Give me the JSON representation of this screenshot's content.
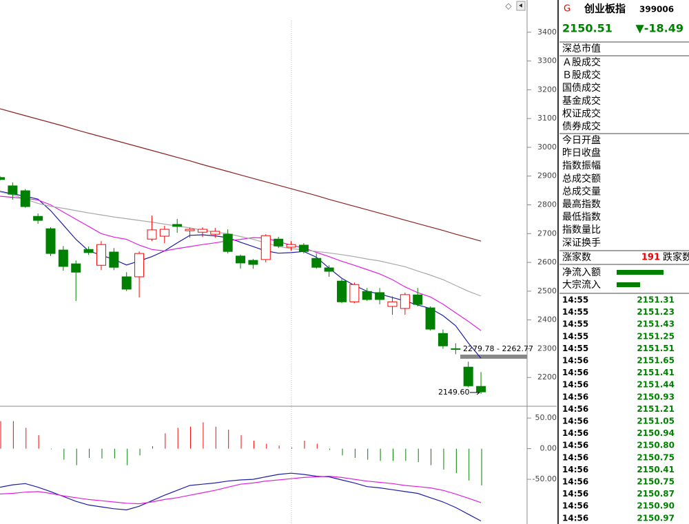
{
  "header": {
    "badge": "G",
    "name": "创业板指",
    "code": "399006",
    "price": "2150.51",
    "change": "▼-18.49"
  },
  "fields": [
    [
      "深总市值"
    ],
    [
      "Ａ股成交",
      "Ｂ股成交",
      "国债成交",
      "基金成交",
      "权证成交",
      "债券成交"
    ],
    [
      "今日开盘",
      "昨日收盘",
      "指数振幅",
      "总成交额",
      "总成交量",
      "最高指数",
      "最低指数",
      "指数量比",
      "深证换手"
    ]
  ],
  "breadth": {
    "up_label": "涨家数",
    "up_value": "191",
    "down_label": "跌家数"
  },
  "flows": [
    "净流入额",
    "大宗流入"
  ],
  "trades": [
    [
      "14:55",
      "2151.31"
    ],
    [
      "14:55",
      "2151.23"
    ],
    [
      "14:55",
      "2151.43"
    ],
    [
      "14:55",
      "2151.25"
    ],
    [
      "14:55",
      "2151.51"
    ],
    [
      "14:56",
      "2151.65"
    ],
    [
      "14:56",
      "2151.41"
    ],
    [
      "14:56",
      "2151.44"
    ],
    [
      "14:56",
      "2150.93"
    ],
    [
      "14:56",
      "2151.21"
    ],
    [
      "14:56",
      "2151.05"
    ],
    [
      "14:56",
      "2150.94"
    ],
    [
      "14:56",
      "2150.80"
    ],
    [
      "14:56",
      "2150.75"
    ],
    [
      "14:56",
      "2150.41"
    ],
    [
      "14:56",
      "2150.75"
    ],
    [
      "14:56",
      "2150.87"
    ],
    [
      "14:56",
      "2150.90"
    ],
    [
      "14:56",
      "2150.97"
    ]
  ],
  "chart_data": [
    {
      "type": "candlestick",
      "up_color": "#ff0000",
      "down_color": "#008000",
      "open": [
        2895,
        2866,
        2849,
        2760,
        2717,
        2643,
        2595,
        2645,
        2590,
        2636,
        2550,
        2550,
        2681,
        2691,
        2732,
        2710,
        2705,
        2698,
        2698,
        2622,
        2607,
        2610,
        2681,
        2653,
        2660,
        2614,
        2581,
        2535,
        2463,
        2499,
        2495,
        2447,
        2440,
        2487,
        2442,
        2353,
        2300,
        2236,
        2169
      ],
      "high": [
        2900,
        2878,
        2855,
        2770,
        2722,
        2657,
        2607,
        2655,
        2674,
        2650,
        2566,
        2638,
        2763,
        2727,
        2751,
        2720,
        2722,
        2720,
        2715,
        2627,
        2612,
        2698,
        2689,
        2674,
        2667,
        2631,
        2590,
        2542,
        2530,
        2511,
        2511,
        2482,
        2495,
        2511,
        2447,
        2367,
        2319,
        2255,
        2219
      ],
      "low": [
        2885,
        2818,
        2790,
        2734,
        2622,
        2571,
        2466,
        2626,
        2573,
        2573,
        2500,
        2478,
        2674,
        2667,
        2703,
        2686,
        2688,
        2686,
        2631,
        2578,
        2578,
        2600,
        2650,
        2640,
        2631,
        2578,
        2550,
        2458,
        2458,
        2466,
        2454,
        2418,
        2418,
        2447,
        2363,
        2300,
        2281,
        2166,
        2143
      ],
      "close": [
        2888,
        2837,
        2794,
        2746,
        2631,
        2586,
        2566,
        2634,
        2662,
        2583,
        2507,
        2631,
        2713,
        2715,
        2725,
        2715,
        2715,
        2708,
        2638,
        2598,
        2593,
        2693,
        2657,
        2662,
        2638,
        2583,
        2569,
        2463,
        2523,
        2471,
        2471,
        2463,
        2488,
        2454,
        2368,
        2310,
        2298,
        2171,
        2150
      ],
      "series": [
        {
          "color": "#1c1ca8",
          "values": [
            2847,
            2838,
            2830,
            2820,
            2780,
            2730,
            2680,
            2640,
            2625,
            2610,
            2591,
            2605,
            2620,
            2640,
            2668,
            2694,
            2696,
            2692,
            2686,
            2670,
            2655,
            2640,
            2632,
            2634,
            2638,
            2618,
            2580,
            2545,
            2520,
            2500,
            2490,
            2478,
            2466,
            2452,
            2440,
            2415,
            2380,
            2320,
            2267
          ]
        },
        {
          "color": "#e020e0",
          "values": [
            2830,
            2826,
            2822,
            2817,
            2800,
            2775,
            2750,
            2725,
            2700,
            2688,
            2680,
            2660,
            2645,
            2640,
            2648,
            2655,
            2662,
            2668,
            2675,
            2680,
            2686,
            2685,
            2672,
            2660,
            2650,
            2635,
            2620,
            2604,
            2590,
            2575,
            2560,
            2540,
            2515,
            2495,
            2480,
            2455,
            2425,
            2395,
            2363
          ]
        },
        {
          "color": "#a8a8a8",
          "values": [
            2845,
            2835,
            2820,
            2805,
            2795,
            2788,
            2780,
            2772,
            2765,
            2758,
            2752,
            2746,
            2740,
            2733,
            2726,
            2720,
            2712,
            2705,
            2700,
            2690,
            2680,
            2668,
            2655,
            2648,
            2643,
            2638,
            2633,
            2627,
            2620,
            2612,
            2605,
            2595,
            2585,
            2570,
            2556,
            2540,
            2520,
            2500,
            2483
          ]
        },
        {
          "color": "#8b2222",
          "values": [
            3134,
            3122,
            3110,
            3098,
            3086,
            3074,
            3061,
            3049,
            3037,
            3025,
            3013,
            3001,
            2989,
            2977,
            2965,
            2953,
            2940,
            2928,
            2916,
            2904,
            2892,
            2880,
            2868,
            2856,
            2844,
            2832,
            2819,
            2807,
            2795,
            2783,
            2771,
            2759,
            2747,
            2735,
            2723,
            2711,
            2698,
            2686,
            2674
          ]
        }
      ],
      "ylim": [
        2100,
        3512
      ],
      "yticks": [
        2200,
        2300,
        2400,
        2500,
        2600,
        2700,
        2800,
        2900,
        3000,
        3100,
        3200,
        3300,
        3400
      ],
      "annotations": [
        "2279.78 - 2262.77",
        "2149.60"
      ]
    },
    {
      "type": "macd",
      "up_color": "#ff0000",
      "down_color": "#008000",
      "values": [
        45,
        45,
        34,
        22,
        -1,
        -18,
        -27,
        -15,
        -16,
        -16,
        -27,
        -11,
        4,
        25,
        34,
        36,
        43,
        36,
        31,
        22,
        13,
        8,
        5,
        2,
        13,
        8,
        -2,
        -11,
        -15,
        -18,
        -20,
        -20,
        -20,
        -22,
        -27,
        -34,
        -40,
        -52,
        -60
      ],
      "series": [
        {
          "color": "#1c1ca8",
          "values": [
            -63,
            -59,
            -57,
            -63,
            -70,
            -78,
            -86,
            -92,
            -95,
            -98,
            -100,
            -94,
            -85,
            -76,
            -68,
            -60,
            -58,
            -56,
            -53,
            -51,
            -50,
            -46,
            -42,
            -40,
            -42,
            -45,
            -46,
            -51,
            -56,
            -62,
            -64,
            -67,
            -70,
            -73,
            -80,
            -87,
            -96,
            -107,
            -118
          ]
        },
        {
          "color": "#e020e0",
          "values": [
            -74,
            -73,
            -71,
            -70,
            -73,
            -77,
            -80,
            -83,
            -85,
            -87,
            -89,
            -90,
            -87,
            -83,
            -80,
            -76,
            -72,
            -68,
            -63,
            -58,
            -56,
            -53,
            -51,
            -49,
            -47,
            -46,
            -45,
            -47,
            -50,
            -53,
            -55,
            -57,
            -60,
            -62,
            -64,
            -68,
            -74,
            -81,
            -88
          ]
        }
      ],
      "ylim": [
        -123,
        67
      ],
      "yticks": [
        {
          "value": 50,
          "label": "50.00"
        },
        {
          "value": 0,
          "label": "0.00"
        },
        {
          "value": -50,
          "label": "-50.00"
        }
      ]
    }
  ]
}
